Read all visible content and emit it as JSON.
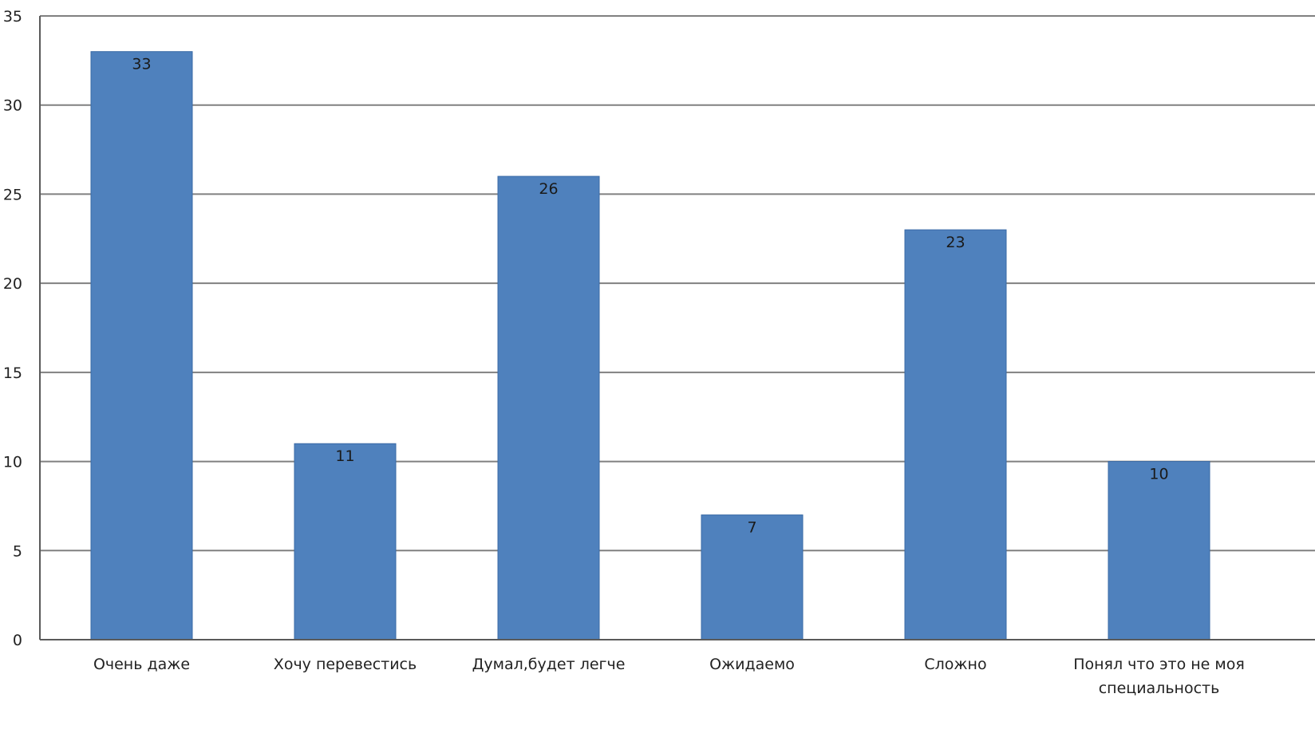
{
  "chart_data": {
    "type": "bar",
    "categories": [
      "Очень даже",
      "Хочу перевестись",
      "Думал,будет легче",
      "Ожидаемо",
      "Сложно",
      "Понял что это не моя специальность"
    ],
    "category_lines": [
      [
        "Очень даже"
      ],
      [
        "Хочу перевестись"
      ],
      [
        "Думал,будет легче"
      ],
      [
        "Ожидаемо"
      ],
      [
        "Сложно"
      ],
      [
        "Понял что это не моя",
        "специальность"
      ]
    ],
    "values": [
      33,
      11,
      26,
      7,
      23,
      10
    ],
    "ylim": [
      0,
      35
    ],
    "yticks": [
      0,
      5,
      10,
      15,
      20,
      25,
      30,
      35
    ],
    "title": "",
    "xlabel": "",
    "ylabel": "",
    "grid": true,
    "legend": "none",
    "bar_color": "#4f81bd",
    "bar_edge_color": "#3a6aa6",
    "grid_color": "#808080",
    "axis_color": "#5a5a5a"
  }
}
